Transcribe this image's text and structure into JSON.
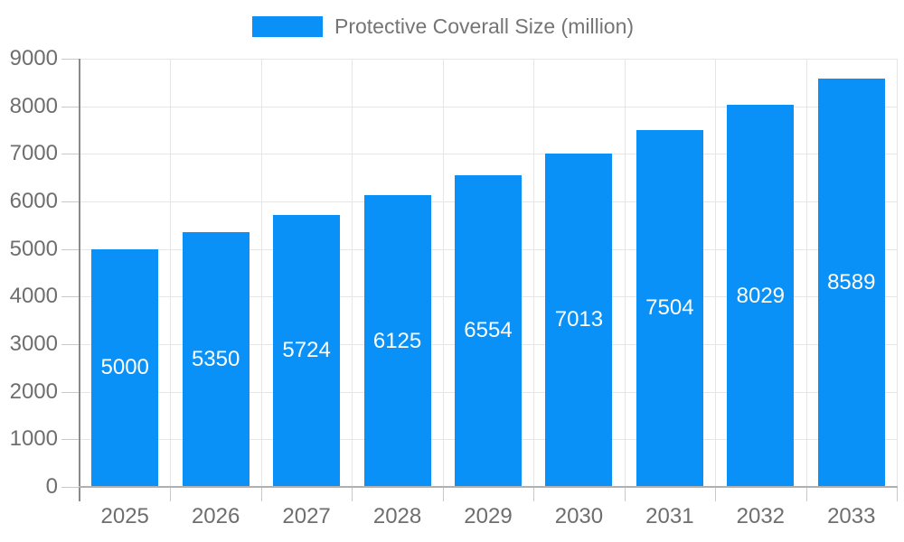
{
  "chart_data": {
    "type": "bar",
    "title": "Protective Coverall Size (million)",
    "categories": [
      "2025",
      "2026",
      "2027",
      "2028",
      "2029",
      "2030",
      "2031",
      "2032",
      "2033"
    ],
    "values": [
      5000,
      5350,
      5724,
      6125,
      6554,
      7013,
      7504,
      8029,
      8589
    ],
    "series": [
      {
        "name": "Protective Coverall Size (million)",
        "values": [
          5000,
          5350,
          5724,
          6125,
          6554,
          7013,
          7504,
          8029,
          8589
        ]
      }
    ],
    "xlabel": "",
    "ylabel": "",
    "ylim": [
      0,
      9000
    ],
    "ytick_step": 1000,
    "ytick_labels": [
      "0",
      "1000",
      "2000",
      "3000",
      "4000",
      "5000",
      "6000",
      "7000",
      "8000",
      "9000"
    ],
    "grid": true,
    "legend_position": "top",
    "bar_labels_inside": true,
    "colors": {
      "bar": "#0991f8",
      "bar_label": "#ffffff",
      "axis_label": "#6e6e6e",
      "legend_label": "#757575",
      "gridline": "#e6e6e6",
      "tick": "#c9c9c9",
      "y_axis_line": "#8a8a8a",
      "x_axis_line": "#b0b0b0"
    }
  }
}
